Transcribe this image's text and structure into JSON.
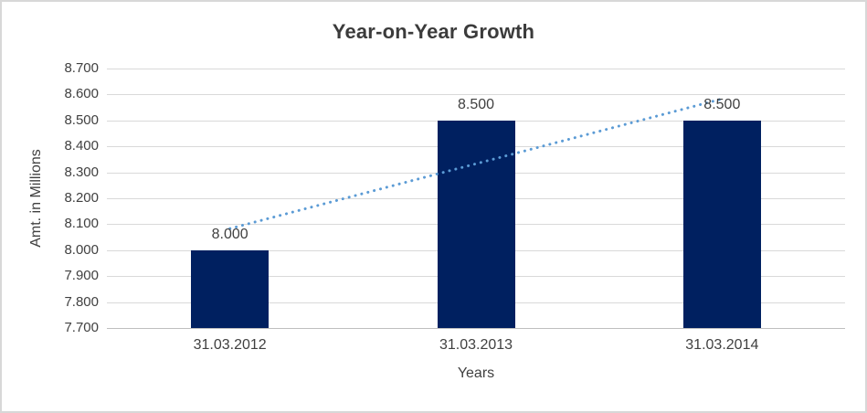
{
  "chart_data": {
    "type": "bar",
    "title": "Year-on-Year Growth",
    "xlabel": "Years",
    "ylabel": "Amt. in Millions",
    "categories": [
      "31.03.2012",
      "31.03.2013",
      "31.03.2014"
    ],
    "values": [
      8.0,
      8.5,
      8.5
    ],
    "data_labels": [
      "8.000",
      "8.500",
      "8.500"
    ],
    "y_ticks": [
      "8.700",
      "8.600",
      "8.500",
      "8.400",
      "8.300",
      "8.200",
      "8.100",
      "8.000",
      "7.900",
      "7.800",
      "7.700"
    ],
    "ylim": [
      7.7,
      8.7
    ],
    "grid": true,
    "legend": "none",
    "colors": {
      "bar": "#002060",
      "trendline": "#5b9bd5",
      "gridline": "#d9d9d9",
      "axis_line": "#bfbfbf",
      "text": "#404040",
      "title_text": "#3b3b3b"
    },
    "trendline": {
      "style": "dotted",
      "color": "#5b9bd5",
      "start_value": 8.083,
      "end_value": 8.583
    }
  }
}
